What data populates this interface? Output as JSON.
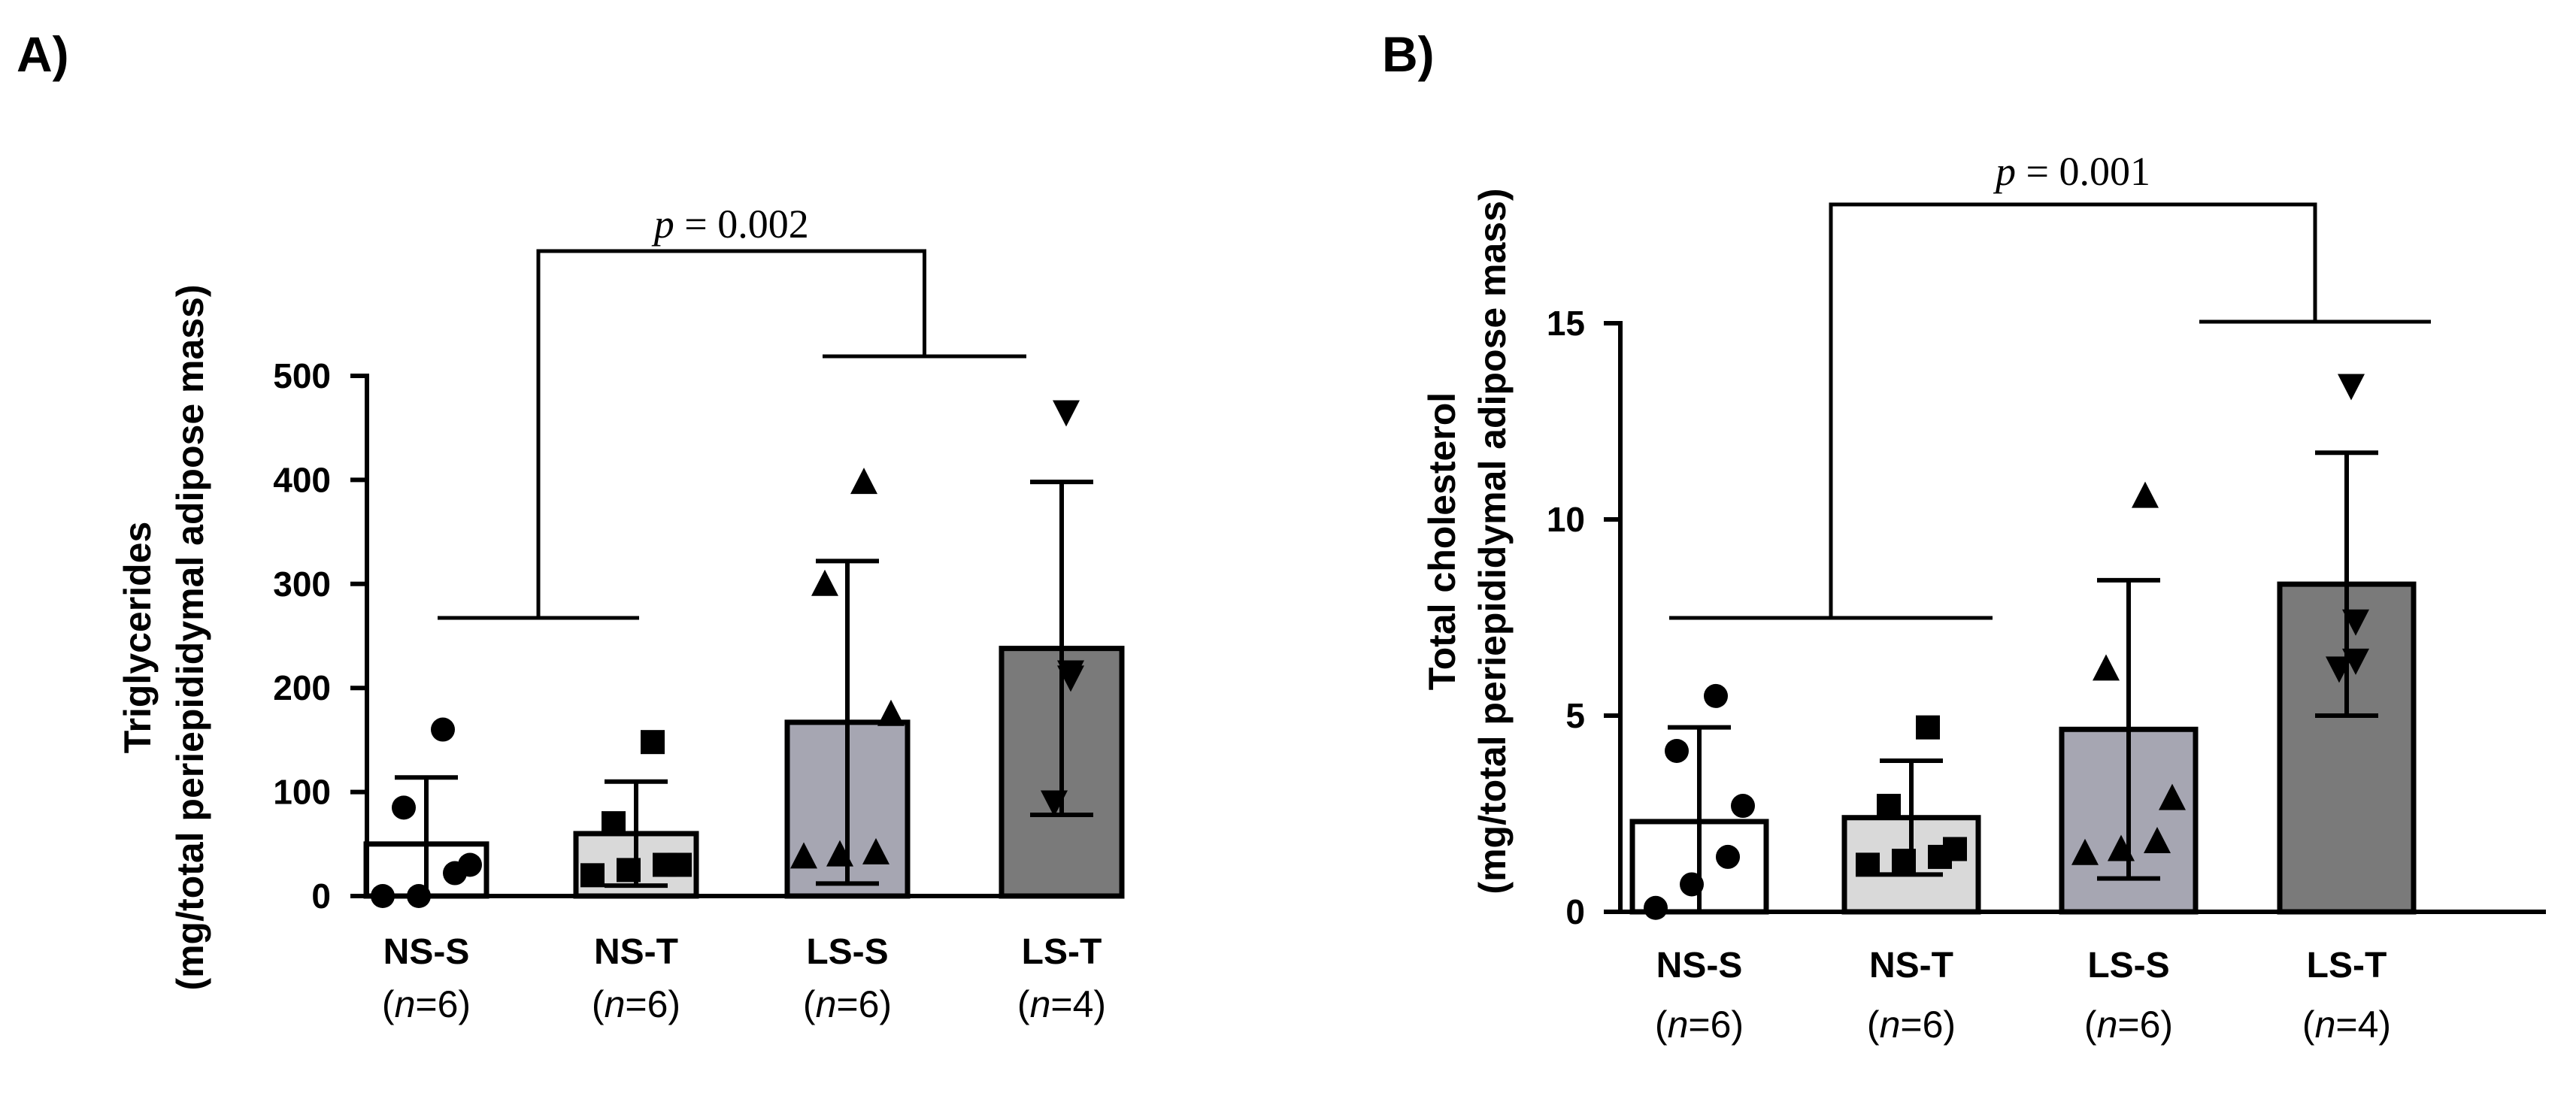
{
  "chart_data": [
    {
      "type": "bar",
      "panel_label": "A)",
      "title": "",
      "ylabel_line1": "Triglycerides",
      "ylabel_line2": "(mg/total periepididymal adipose mass)",
      "xlabel": "",
      "ylim": [
        0,
        500
      ],
      "yticks": [
        0,
        100,
        200,
        300,
        400,
        500
      ],
      "categories": [
        "NS-S",
        "NS-T",
        "LS-S",
        "LS-T"
      ],
      "n_values": [
        "6",
        "6",
        "6",
        "4"
      ],
      "means": [
        50,
        60,
        167,
        238
      ],
      "sd": [
        64,
        50,
        155,
        160
      ],
      "points": [
        [
          0,
          0,
          22,
          30,
          85,
          160
        ],
        [
          20,
          25,
          30,
          30,
          70,
          148
        ],
        [
          38,
          40,
          42,
          175,
          300,
          398
        ],
        [
          90,
          210,
          215,
          465
        ]
      ],
      "markers": [
        "circle",
        "square",
        "triangle-up",
        "triangle-down"
      ],
      "fills": [
        "#ffffff",
        "#d9d9d9",
        "#a6a6b2",
        "#7a7a7a"
      ],
      "comparison": {
        "p_prefix": "p",
        "p_text": " = 0.002",
        "group_left": [
          "NS-S",
          "NS-T"
        ],
        "group_right": [
          "LS-S",
          "LS-T"
        ]
      },
      "legend": "none",
      "grid": false
    },
    {
      "type": "bar",
      "panel_label": "B)",
      "title": "",
      "ylabel_line1": "Total cholesterol",
      "ylabel_line2": "(mg/total periepididymal adipose mass)",
      "xlabel": "",
      "ylim": [
        0,
        15
      ],
      "yticks": [
        0,
        5,
        10,
        15
      ],
      "categories": [
        "NS-S",
        "NS-T",
        "LS-S",
        "LS-T"
      ],
      "n_values": [
        "6",
        "6",
        "6",
        "4"
      ],
      "means": [
        2.3,
        2.4,
        4.65,
        8.35
      ],
      "sd": [
        2.4,
        1.45,
        3.8,
        3.35
      ],
      "points": [
        [
          0.1,
          0.7,
          1.4,
          2.7,
          4.1,
          5.5
        ],
        [
          1.2,
          1.3,
          1.4,
          1.6,
          2.7,
          4.7
        ],
        [
          1.5,
          1.6,
          1.8,
          2.9,
          6.2,
          10.6
        ],
        [
          6.2,
          6.4,
          7.4,
          13.4
        ]
      ],
      "markers": [
        "circle",
        "square",
        "triangle-up",
        "triangle-down"
      ],
      "fills": [
        "#ffffff",
        "#d9d9d9",
        "#a6a6b2",
        "#7a7a7a"
      ],
      "comparison": {
        "p_prefix": "p",
        "p_text": " = 0.001",
        "group_left": [
          "NS-S",
          "NS-T"
        ],
        "group_right": [
          "LS-S",
          "LS-T"
        ]
      },
      "legend": "none",
      "grid": false
    }
  ]
}
